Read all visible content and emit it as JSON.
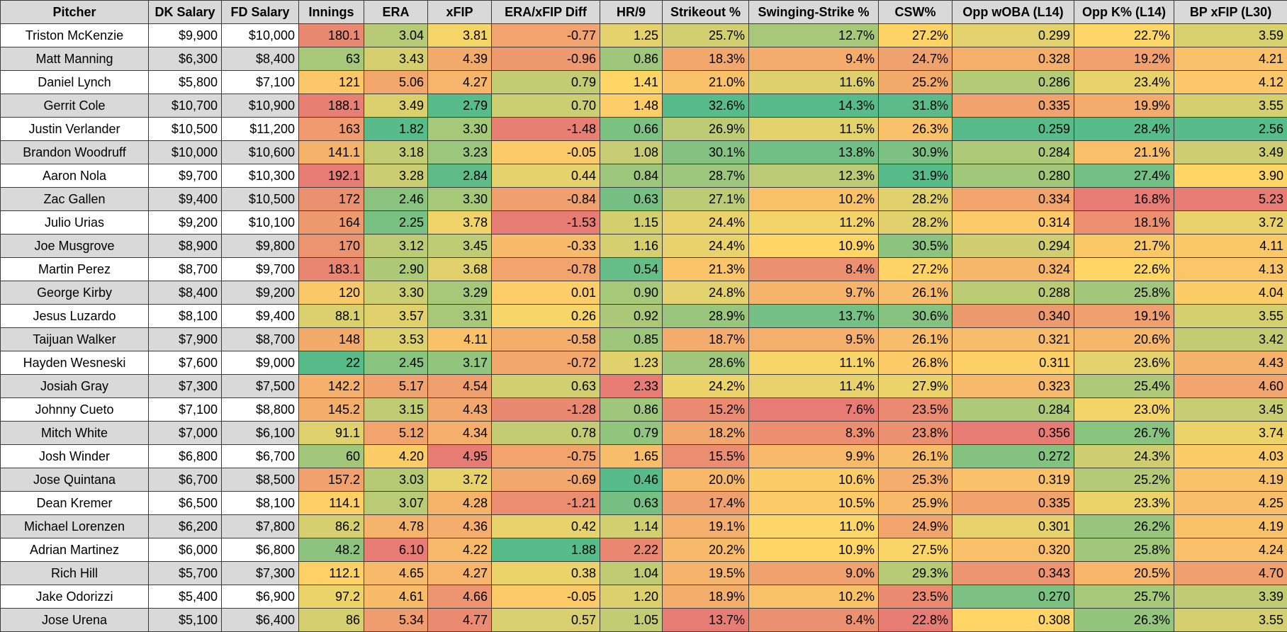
{
  "headers": [
    "Pitcher",
    "DK Salary",
    "FD Salary",
    "Innings",
    "ERA",
    "xFIP",
    "ERA/xFIP Diff",
    "HR/9",
    "Strikeout %",
    "Swinging-Strike %",
    "CSW%",
    "Opp wOBA (L14)",
    "Opp K% (L14)",
    "BP xFIP (L30)"
  ],
  "rows": [
    [
      "Triston McKenzie",
      "$9,900",
      "$10,000",
      "180.1",
      "3.04",
      "3.81",
      "-0.77",
      "1.25",
      "25.7%",
      "12.7%",
      "27.2%",
      "0.299",
      "22.7%",
      "3.59"
    ],
    [
      "Matt Manning",
      "$6,300",
      "$8,400",
      "63",
      "3.43",
      "4.39",
      "-0.96",
      "0.86",
      "18.3%",
      "9.4%",
      "24.7%",
      "0.328",
      "19.2%",
      "4.21"
    ],
    [
      "Daniel Lynch",
      "$5,800",
      "$7,100",
      "121",
      "5.06",
      "4.27",
      "0.79",
      "1.41",
      "21.0%",
      "11.6%",
      "25.2%",
      "0.286",
      "23.4%",
      "4.12"
    ],
    [
      "Gerrit Cole",
      "$10,700",
      "$10,900",
      "188.1",
      "3.49",
      "2.79",
      "0.70",
      "1.48",
      "32.6%",
      "14.3%",
      "31.8%",
      "0.335",
      "19.9%",
      "3.55"
    ],
    [
      "Justin Verlander",
      "$10,500",
      "$11,200",
      "163",
      "1.82",
      "3.30",
      "-1.48",
      "0.66",
      "26.9%",
      "11.5%",
      "26.3%",
      "0.259",
      "28.4%",
      "2.56"
    ],
    [
      "Brandon Woodruff",
      "$10,000",
      "$10,600",
      "141.1",
      "3.18",
      "3.23",
      "-0.05",
      "1.08",
      "30.1%",
      "13.8%",
      "30.9%",
      "0.284",
      "21.1%",
      "3.49"
    ],
    [
      "Aaron Nola",
      "$9,700",
      "$10,300",
      "192.1",
      "3.28",
      "2.84",
      "0.44",
      "0.84",
      "28.7%",
      "12.3%",
      "31.9%",
      "0.280",
      "27.4%",
      "3.90"
    ],
    [
      "Zac Gallen",
      "$9,400",
      "$10,500",
      "172",
      "2.46",
      "3.30",
      "-0.84",
      "0.63",
      "27.1%",
      "10.2%",
      "28.2%",
      "0.334",
      "16.8%",
      "5.23"
    ],
    [
      "Julio Urias",
      "$9,200",
      "$10,100",
      "164",
      "2.25",
      "3.78",
      "-1.53",
      "1.15",
      "24.4%",
      "11.2%",
      "28.2%",
      "0.314",
      "18.1%",
      "3.72"
    ],
    [
      "Joe Musgrove",
      "$8,900",
      "$9,800",
      "170",
      "3.12",
      "3.45",
      "-0.33",
      "1.16",
      "24.4%",
      "10.9%",
      "30.5%",
      "0.294",
      "21.7%",
      "4.11"
    ],
    [
      "Martin Perez",
      "$8,700",
      "$9,700",
      "183.1",
      "2.90",
      "3.68",
      "-0.78",
      "0.54",
      "21.3%",
      "8.4%",
      "27.2%",
      "0.324",
      "22.6%",
      "4.13"
    ],
    [
      "George Kirby",
      "$8,400",
      "$9,200",
      "120",
      "3.30",
      "3.29",
      "0.01",
      "0.90",
      "24.8%",
      "9.7%",
      "26.1%",
      "0.288",
      "25.8%",
      "4.04"
    ],
    [
      "Jesus Luzardo",
      "$8,100",
      "$9,400",
      "88.1",
      "3.57",
      "3.31",
      "0.26",
      "0.92",
      "28.9%",
      "13.7%",
      "30.6%",
      "0.340",
      "19.1%",
      "3.55"
    ],
    [
      "Taijuan Walker",
      "$7,900",
      "$8,700",
      "148",
      "3.53",
      "4.11",
      "-0.58",
      "0.85",
      "18.7%",
      "9.5%",
      "26.1%",
      "0.321",
      "20.6%",
      "3.42"
    ],
    [
      "Hayden Wesneski",
      "$7,600",
      "$9,000",
      "22",
      "2.45",
      "3.17",
      "-0.72",
      "1.23",
      "28.6%",
      "11.1%",
      "26.8%",
      "0.311",
      "23.6%",
      "4.43"
    ],
    [
      "Josiah Gray",
      "$7,300",
      "$7,500",
      "142.2",
      "5.17",
      "4.54",
      "0.63",
      "2.33",
      "24.2%",
      "11.4%",
      "27.9%",
      "0.323",
      "25.4%",
      "4.60"
    ],
    [
      "Johnny Cueto",
      "$7,100",
      "$8,800",
      "145.2",
      "3.15",
      "4.43",
      "-1.28",
      "0.86",
      "15.2%",
      "7.6%",
      "23.5%",
      "0.284",
      "23.0%",
      "3.45"
    ],
    [
      "Mitch White",
      "$7,000",
      "$6,100",
      "91.1",
      "5.12",
      "4.34",
      "0.78",
      "0.79",
      "18.2%",
      "8.3%",
      "23.8%",
      "0.356",
      "26.7%",
      "3.74"
    ],
    [
      "Josh Winder",
      "$6,800",
      "$6,700",
      "60",
      "4.20",
      "4.95",
      "-0.75",
      "1.65",
      "15.5%",
      "9.9%",
      "26.1%",
      "0.272",
      "24.3%",
      "4.03"
    ],
    [
      "Jose Quintana",
      "$6,700",
      "$8,500",
      "157.2",
      "3.03",
      "3.72",
      "-0.69",
      "0.46",
      "20.0%",
      "10.6%",
      "25.3%",
      "0.319",
      "25.2%",
      "4.19"
    ],
    [
      "Dean Kremer",
      "$6,500",
      "$8,100",
      "114.1",
      "3.07",
      "4.28",
      "-1.21",
      "0.63",
      "17.4%",
      "10.5%",
      "25.9%",
      "0.335",
      "23.3%",
      "4.25"
    ],
    [
      "Michael Lorenzen",
      "$6,200",
      "$7,800",
      "86.2",
      "4.78",
      "4.36",
      "0.42",
      "1.14",
      "19.1%",
      "11.0%",
      "24.9%",
      "0.301",
      "26.2%",
      "4.19"
    ],
    [
      "Adrian Martinez",
      "$6,000",
      "$6,800",
      "48.2",
      "6.10",
      "4.22",
      "1.88",
      "2.22",
      "20.2%",
      "10.9%",
      "27.5%",
      "0.320",
      "25.8%",
      "4.24"
    ],
    [
      "Rich Hill",
      "$5,700",
      "$7,300",
      "112.1",
      "4.65",
      "4.27",
      "0.38",
      "1.04",
      "19.5%",
      "9.0%",
      "29.3%",
      "0.343",
      "20.5%",
      "4.70"
    ],
    [
      "Jake Odorizzi",
      "$5,400",
      "$6,900",
      "97.2",
      "4.61",
      "4.66",
      "-0.05",
      "1.20",
      "18.9%",
      "10.2%",
      "23.5%",
      "0.270",
      "25.7%",
      "3.39"
    ],
    [
      "Jose Urena",
      "$5,100",
      "$6,400",
      "86",
      "5.34",
      "4.77",
      "0.57",
      "1.05",
      "13.7%",
      "8.4%",
      "22.8%",
      "0.308",
      "26.3%",
      "3.55"
    ]
  ],
  "color_scale": {
    "low": "#e67c73",
    "mid": "#ffd666",
    "high": "#57bb8a",
    "higher_is_better": [
      true,
      true,
      false,
      false,
      false,
      true,
      false,
      true,
      true,
      true,
      false,
      true,
      false
    ]
  }
}
